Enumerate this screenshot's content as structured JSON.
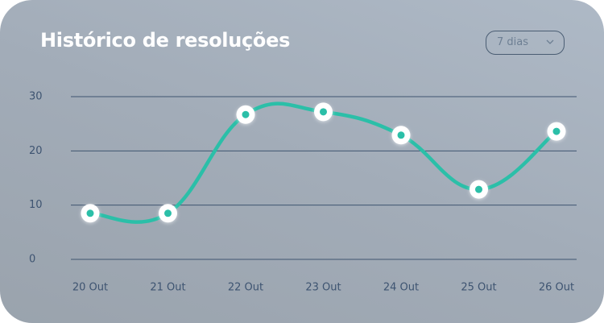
{
  "chart_data": {
    "type": "line",
    "title": "Histórico de resoluções",
    "categories": [
      "20 Out",
      "21 Out",
      "22 Out",
      "23 Out",
      "24 Out",
      "25 Out",
      "26 Out"
    ],
    "values": [
      8.5,
      8.5,
      26.7,
      27.2,
      22.9,
      12.9,
      23.6
    ],
    "color": "#2bbfa8",
    "ylim": [
      0,
      30
    ],
    "yticks": [
      0,
      10,
      20,
      30
    ],
    "grid": true
  },
  "range_selector": "7 dias"
}
